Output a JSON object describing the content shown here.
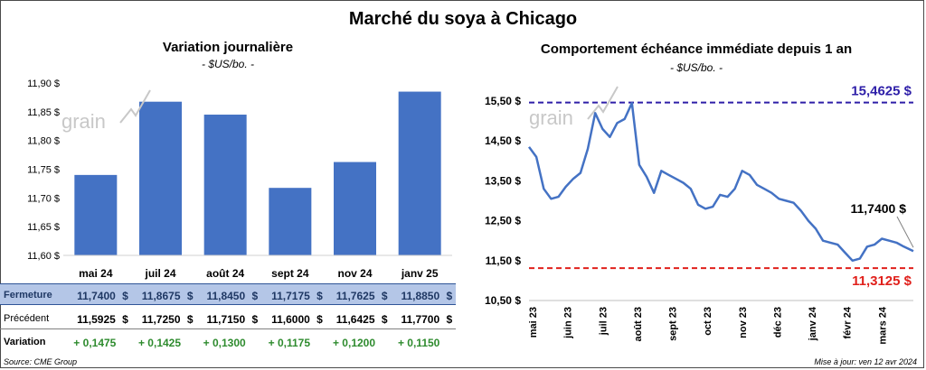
{
  "title": "Marché du soya à Chicago",
  "left_subtitle": "Variation  journalière",
  "left_unit": "- $US/bo. -",
  "right_subtitle": "Comportement  échéance immédiate depuis 1 an",
  "right_unit": "- $US/bo. -",
  "watermark": "grain",
  "source": "Source: CME Group",
  "updated": "Mise à jour: ven 12 avr 2024",
  "colors": {
    "bar": "#4472c4",
    "line": "#4472c4",
    "high": "#2e1fa8",
    "low": "#e0201b",
    "positive": "#2e8b2e"
  },
  "table": {
    "rows": [
      {
        "label": "Fermeture",
        "values": [
          "11,7400",
          "11,8675",
          "11,8450",
          "11,7175",
          "11,7625",
          "11,8850"
        ],
        "unit": "$"
      },
      {
        "label": "Précédent",
        "values": [
          "11,5925",
          "11,7250",
          "11,7150",
          "11,6000",
          "11,6425",
          "11,7700"
        ],
        "unit": "$"
      },
      {
        "label": "Variation",
        "values": [
          "+ 0,1475",
          "+ 0,1425",
          "+ 0,1300",
          "+ 0,1175",
          "+ 0,1200",
          "+ 0,1150"
        ],
        "unit": ""
      }
    ]
  },
  "chart_data": [
    {
      "type": "bar",
      "title": "Variation  journalière",
      "subtitle": "- $US/bo. -",
      "categories": [
        "mai 24",
        "juil 24",
        "août 24",
        "sept 24",
        "nov 24",
        "janv 25"
      ],
      "values": [
        11.74,
        11.8675,
        11.845,
        11.7175,
        11.7625,
        11.885
      ],
      "ylim": [
        11.6,
        11.9
      ],
      "yticks": [
        "11,60 $",
        "11,65 $",
        "11,70 $",
        "11,75 $",
        "11,80 $",
        "11,85 $",
        "11,90 $"
      ],
      "ytick_values": [
        11.6,
        11.65,
        11.7,
        11.75,
        11.8,
        11.85,
        11.9
      ],
      "grid": false
    },
    {
      "type": "line",
      "title": "Comportement  échéance immédiate depuis 1 an",
      "subtitle": "- $US/bo. -",
      "ylim": [
        10.5,
        15.5
      ],
      "yticks": [
        "10,50 $",
        "11,50 $",
        "12,50 $",
        "13,50 $",
        "14,50 $",
        "15,50 $"
      ],
      "ytick_values": [
        10.5,
        11.5,
        12.5,
        13.5,
        14.5,
        15.5
      ],
      "xticks": [
        "mai 23",
        "juin 23",
        "juil 23",
        "août 23",
        "sept 23",
        "oct 23",
        "nov 23",
        "déc 23",
        "janv 24",
        "févr 24",
        "mars 24"
      ],
      "x_range": [
        "2023-04-12",
        "2024-04-12"
      ],
      "series": [
        {
          "x": [
            "2023-04-12",
            "2023-04-19",
            "2023-04-26",
            "2023-05-03",
            "2023-05-10",
            "2023-05-17",
            "2023-05-24",
            "2023-05-31",
            "2023-06-07",
            "2023-06-14",
            "2023-06-21",
            "2023-06-28",
            "2023-07-05",
            "2023-07-12",
            "2023-07-19",
            "2023-07-26",
            "2023-08-02",
            "2023-08-09",
            "2023-08-16",
            "2023-08-23",
            "2023-08-30",
            "2023-09-06",
            "2023-09-13",
            "2023-09-20",
            "2023-09-27",
            "2023-10-04",
            "2023-10-11",
            "2023-10-18",
            "2023-10-25",
            "2023-11-01",
            "2023-11-08",
            "2023-11-15",
            "2023-11-22",
            "2023-11-29",
            "2023-12-06",
            "2023-12-13",
            "2023-12-20",
            "2023-12-27",
            "2024-01-03",
            "2024-01-10",
            "2024-01-17",
            "2024-01-24",
            "2024-01-31",
            "2024-02-07",
            "2024-02-14",
            "2024-02-21",
            "2024-02-28",
            "2024-03-06",
            "2024-03-13",
            "2024-03-20",
            "2024-03-27",
            "2024-04-03",
            "2024-04-12"
          ],
          "y": [
            14.35,
            14.1,
            13.3,
            13.05,
            13.1,
            13.35,
            13.55,
            13.7,
            14.3,
            15.2,
            14.8,
            14.6,
            14.95,
            15.05,
            15.45,
            13.9,
            13.6,
            13.2,
            13.75,
            13.65,
            13.55,
            13.45,
            13.3,
            12.9,
            12.8,
            12.85,
            13.15,
            13.1,
            13.3,
            13.75,
            13.65,
            13.4,
            13.3,
            13.2,
            13.05,
            13.0,
            12.95,
            12.75,
            12.5,
            12.3,
            12.0,
            11.95,
            11.9,
            11.7,
            11.5,
            11.55,
            11.85,
            11.9,
            12.05,
            12.0,
            11.95,
            11.85,
            11.74
          ]
        }
      ],
      "annotations": {
        "high_label": "15,4625 $",
        "high": 15.4625,
        "low_label": "11,3125 $",
        "low": 11.3125,
        "last_label": "11,7400 $",
        "last": 11.74
      },
      "grid": false
    }
  ]
}
